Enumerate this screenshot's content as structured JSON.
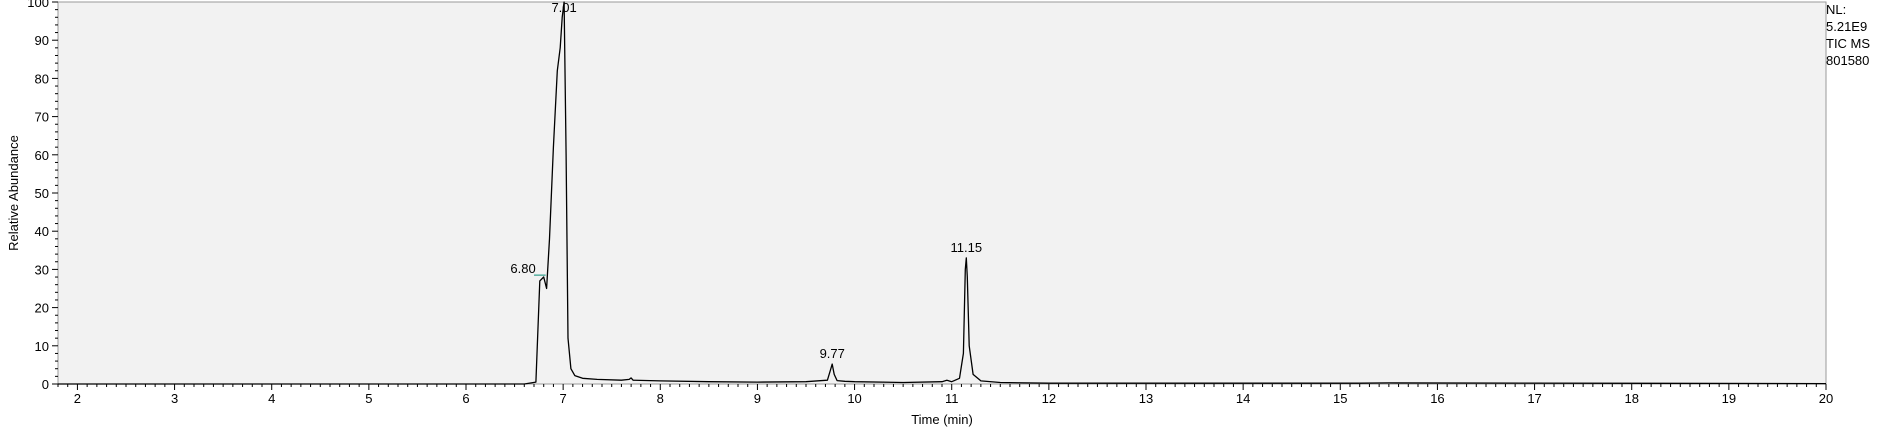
{
  "chart_data": {
    "type": "line",
    "xlabel": "Time (min)",
    "ylabel": "Relative Abundance",
    "xlim": [
      1.8,
      20.0
    ],
    "ylim": [
      0,
      100
    ],
    "x_ticks": [
      2,
      3,
      4,
      5,
      6,
      7,
      8,
      9,
      10,
      11,
      12,
      13,
      14,
      15,
      16,
      17,
      18,
      19,
      20
    ],
    "y_ticks": [
      0,
      10,
      20,
      30,
      40,
      50,
      60,
      70,
      80,
      90,
      100
    ],
    "grid": false,
    "series": [
      {
        "x": [
          1.8,
          6.6,
          6.72,
          6.76,
          6.8,
          6.83,
          6.86,
          6.9,
          6.94,
          6.97,
          6.99,
          7.01,
          7.03,
          7.05,
          7.08,
          7.12,
          7.2,
          7.35,
          7.6,
          7.68,
          7.7,
          7.72,
          8.0,
          8.5,
          9.0,
          9.5,
          9.72,
          9.75,
          9.77,
          9.79,
          9.82,
          9.9,
          10.0,
          10.5,
          10.9,
          10.95,
          11.0,
          11.08,
          11.12,
          11.14,
          11.15,
          11.16,
          11.18,
          11.22,
          11.3,
          11.5,
          12.0,
          15.2,
          15.5,
          20.0
        ],
        "y": [
          0,
          0,
          0.5,
          27,
          28,
          25,
          38,
          62,
          82,
          88,
          96,
          100,
          60,
          12,
          4,
          2.2,
          1.5,
          1.2,
          1.0,
          1.2,
          1.6,
          1.0,
          0.8,
          0.6,
          0.5,
          0.6,
          1.0,
          3.5,
          5.2,
          2.5,
          0.9,
          0.7,
          0.6,
          0.4,
          0.6,
          1.0,
          0.6,
          1.5,
          8,
          30,
          33,
          28,
          10,
          2.5,
          0.8,
          0.4,
          0.2,
          0.2,
          0.3,
          0.1
        ]
      }
    ],
    "annotations": [
      {
        "text": "7.01",
        "x": 7.01,
        "y": 100
      },
      {
        "text": "6.80",
        "x": 6.8,
        "y": 28
      },
      {
        "text": "9.77",
        "x": 9.77,
        "y": 5.2
      },
      {
        "text": "11.15",
        "x": 11.15,
        "y": 33
      }
    ],
    "baseline_marker": {
      "x_start": 6.7,
      "x_end": 6.82,
      "y": 28.5,
      "color": "#2e9e8a"
    },
    "side_info": [
      "NL:",
      "5.21E9",
      "TIC  MS",
      "801580"
    ],
    "colors": {
      "trace": "#000000",
      "plot_background": "#f2f2f2",
      "frame": "#9a9a9a"
    }
  }
}
